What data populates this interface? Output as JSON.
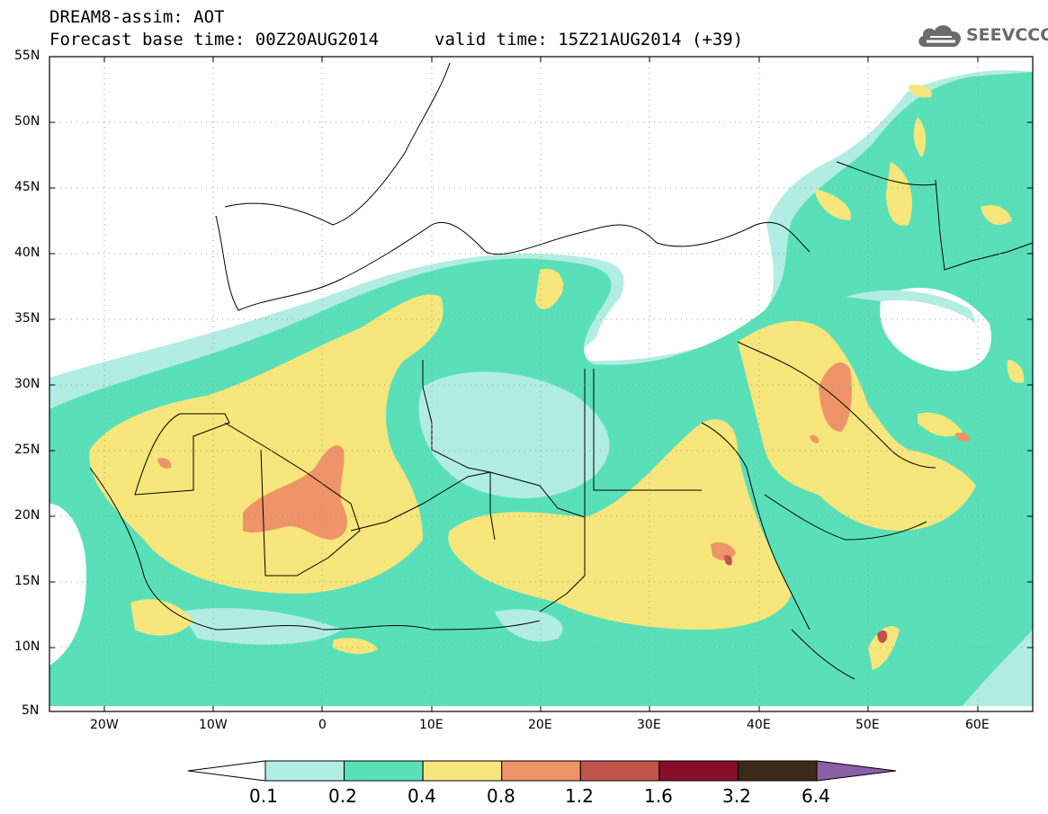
{
  "header": {
    "model_line": "DREAM8-assim: AOT",
    "base_time": "Forecast base time: 00Z20AUG2014",
    "valid_time": "valid time: 15Z21AUG2014 (+39)"
  },
  "logo": {
    "text": "SEEVCCC",
    "icon": "cloud-logo-icon",
    "color": "#6b6b6b"
  },
  "map": {
    "lat_labels": [
      "55N",
      "50N",
      "45N",
      "40N",
      "35N",
      "30N",
      "25N",
      "20N",
      "15N",
      "10N",
      "5N"
    ],
    "lon_labels": [
      "20W",
      "10W",
      "0",
      "10E",
      "20E",
      "30E",
      "40E",
      "50E",
      "60E"
    ],
    "extent": {
      "lon_min": -25,
      "lon_max": 65,
      "lat_min": 5,
      "lat_max": 55
    }
  },
  "colorbar": {
    "labels": [
      "0.1",
      "0.2",
      "0.4",
      "0.8",
      "1.2",
      "1.6",
      "3.2",
      "6.4"
    ],
    "colors": [
      "#b2ede4",
      "#5ae0b8",
      "#f7e67b",
      "#ee9468",
      "#c0534a",
      "#870e2a",
      "#3b2a18"
    ],
    "under_color": "#ffffff",
    "over_color": "#8a5ea8"
  }
}
